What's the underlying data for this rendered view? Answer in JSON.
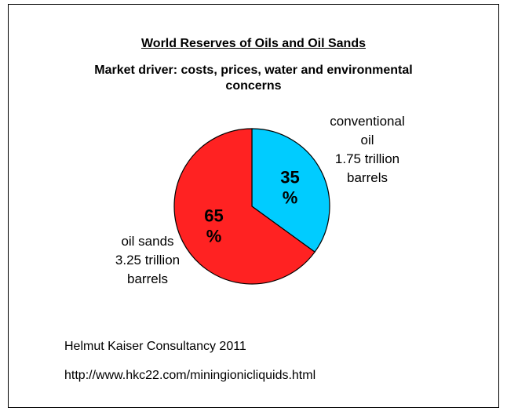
{
  "chart_data": {
    "type": "pie",
    "title": "World Reserves of Oils and Oil Sands",
    "subtitle": "Market driver: costs, prices, water and environmental concerns",
    "slices": [
      {
        "name": "conventional oil",
        "value": 35,
        "percent_label": "35 %",
        "callout": "conventional\noil\n1.75 trillion\nbarrels",
        "color": "#00ccff"
      },
      {
        "name": "oil sands",
        "value": 65,
        "percent_label": "65 %",
        "callout": "oil sands\n3.25 trillion\nbarrels",
        "color": "#ff2222"
      }
    ]
  },
  "footer": {
    "credit": "Helmut Kaiser Consultancy 2011",
    "url": "http://www.hkc22.com/miningionicliquids.html"
  },
  "style": {
    "stroke_color": "#000000",
    "background": "#ffffff"
  }
}
